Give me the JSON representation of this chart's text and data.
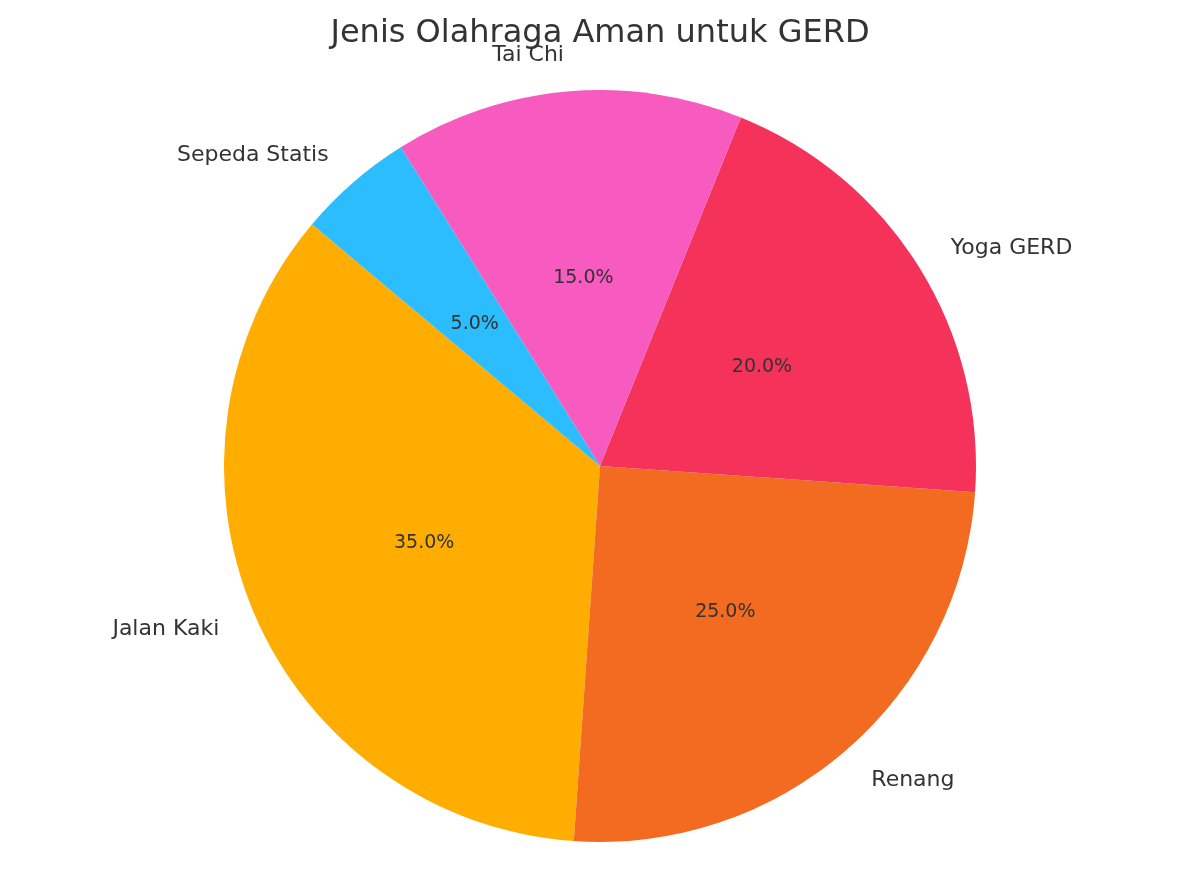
{
  "chart_data": {
    "type": "pie",
    "title": "Jenis Olahraga Aman untuk GERD",
    "categories": [
      "Jalan Kaki",
      "Renang",
      "Yoga GERD",
      "Tai Chi",
      "Sepeda Statis"
    ],
    "values": [
      35,
      25,
      20,
      15,
      5
    ],
    "value_labels": [
      "35.0%",
      "25.0%",
      "20.0%",
      "15.0%",
      "5.0%"
    ],
    "colors": [
      "#ffad00",
      "#f26b21",
      "#f5325a",
      "#f75bbf",
      "#2bbdfd"
    ]
  }
}
